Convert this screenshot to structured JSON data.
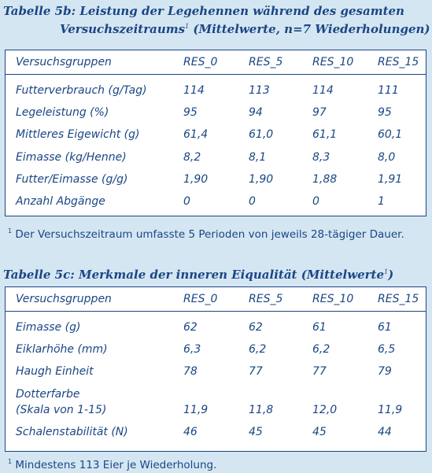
{
  "table1": {
    "title_line1": "Tabelle 5b: Leistung der Legehennen während des gesamten",
    "title_line2_pre": "Versuchszeitraums",
    "title_line2_sup": "1",
    "title_line2_post": " (Mittelwerte, n=7 Wiederholungen)",
    "header": [
      "Versuchsgruppen",
      "RES_0",
      "RES_5",
      "RES_10",
      "RES_15"
    ],
    "rows": [
      [
        "Futterverbrauch (g/Tag)",
        "114",
        "113",
        "114",
        "111"
      ],
      [
        "Legeleistung (%)",
        "95",
        "94",
        "97",
        "95"
      ],
      [
        "Mittleres Eigewicht (g)",
        "61,4",
        "61,0",
        "61,1",
        "60,1"
      ],
      [
        "Eimasse (kg/Henne)",
        "8,2",
        "8,1",
        "8,3",
        "8,0"
      ],
      [
        "Futter/Eimasse (g/g)",
        "1,90",
        "1,90",
        "1,88",
        "1,91"
      ],
      [
        "Anzahl Abgänge",
        "0",
        "0",
        "0",
        "1"
      ]
    ],
    "footnote_sup": "1",
    "footnote_text": " Der Versuchszeitraum umfasste 5 Perioden von jeweils 28-tägiger Dauer."
  },
  "table2": {
    "title_pre": "Tabelle 5c: Merkmale der inneren Eiqualität (Mittelwerte",
    "title_sup": "1",
    "title_post": ")",
    "header": [
      "Versuchsgruppen",
      "RES_0",
      "RES_5",
      "RES_10",
      "RES_15"
    ],
    "rows": [
      [
        "Eimasse (g)",
        "62",
        "62",
        "61",
        "61"
      ],
      [
        "Eiklarhöhe (mm)",
        "6,3",
        "6,2",
        "6,2",
        "6,5"
      ],
      [
        "Haugh Einheit",
        "78",
        "77",
        "77",
        "79"
      ],
      [
        "Dotterfarbe",
        "",
        "",
        "",
        ""
      ],
      [
        "(Skala von 1-15)",
        "11,9",
        "11,8",
        "12,0",
        "11,9"
      ],
      [
        "Schalenstabilität (N)",
        "46",
        "45",
        "45",
        "44"
      ]
    ],
    "footnote_sup": "1",
    "footnote_text": " Mindestens 113 Eier je Wiederholung."
  }
}
